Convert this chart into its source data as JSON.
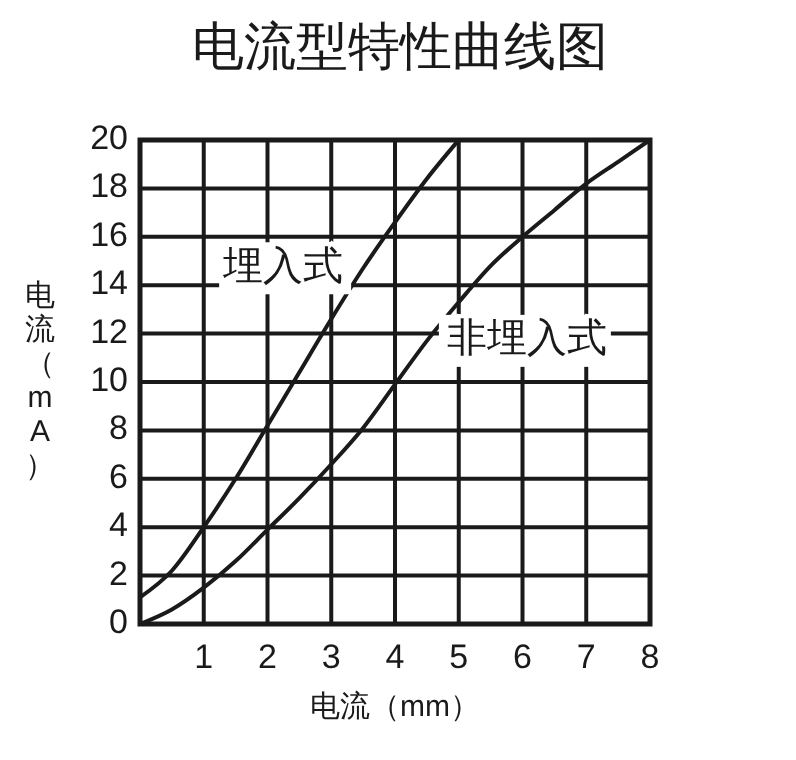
{
  "chart_data": {
    "type": "line",
    "title": "电流型特性曲线图",
    "xlabel": "电流（mm）",
    "ylabel": "电流（mA）",
    "xlim": [
      0,
      8
    ],
    "xticks": [
      {
        "value": 0,
        "label": null
      },
      1,
      2,
      3,
      4,
      5,
      6,
      7,
      8
    ],
    "ylim": [
      0,
      20
    ],
    "yticks": [
      0,
      2,
      4,
      6,
      8,
      10,
      12,
      14,
      16,
      18,
      20
    ],
    "grid": true,
    "marker": "none",
    "line_style": "solid",
    "series": [
      {
        "name": "埋入式",
        "color": "#1a1a1a",
        "x": [
          0,
          0.5,
          1,
          1.5,
          2,
          2.5,
          3,
          3.5,
          4,
          4.5,
          5
        ],
        "values": [
          1.1,
          2.2,
          4,
          6,
          8.2,
          10.4,
          12.6,
          14.7,
          16.6,
          18.4,
          20
        ]
      },
      {
        "name": "非埋入式",
        "color": "#1a1a1a",
        "x": [
          0,
          0.5,
          1,
          1.5,
          2,
          2.5,
          3,
          3.5,
          4,
          4.5,
          5,
          5.5,
          6,
          6.5,
          7,
          7.5,
          8
        ],
        "values": [
          0,
          0.6,
          1.5,
          2.6,
          3.9,
          5.2,
          6.6,
          8.1,
          9.9,
          11.7,
          13.3,
          14.8,
          16,
          17.1,
          18.2,
          19.1,
          20
        ]
      }
    ]
  }
}
